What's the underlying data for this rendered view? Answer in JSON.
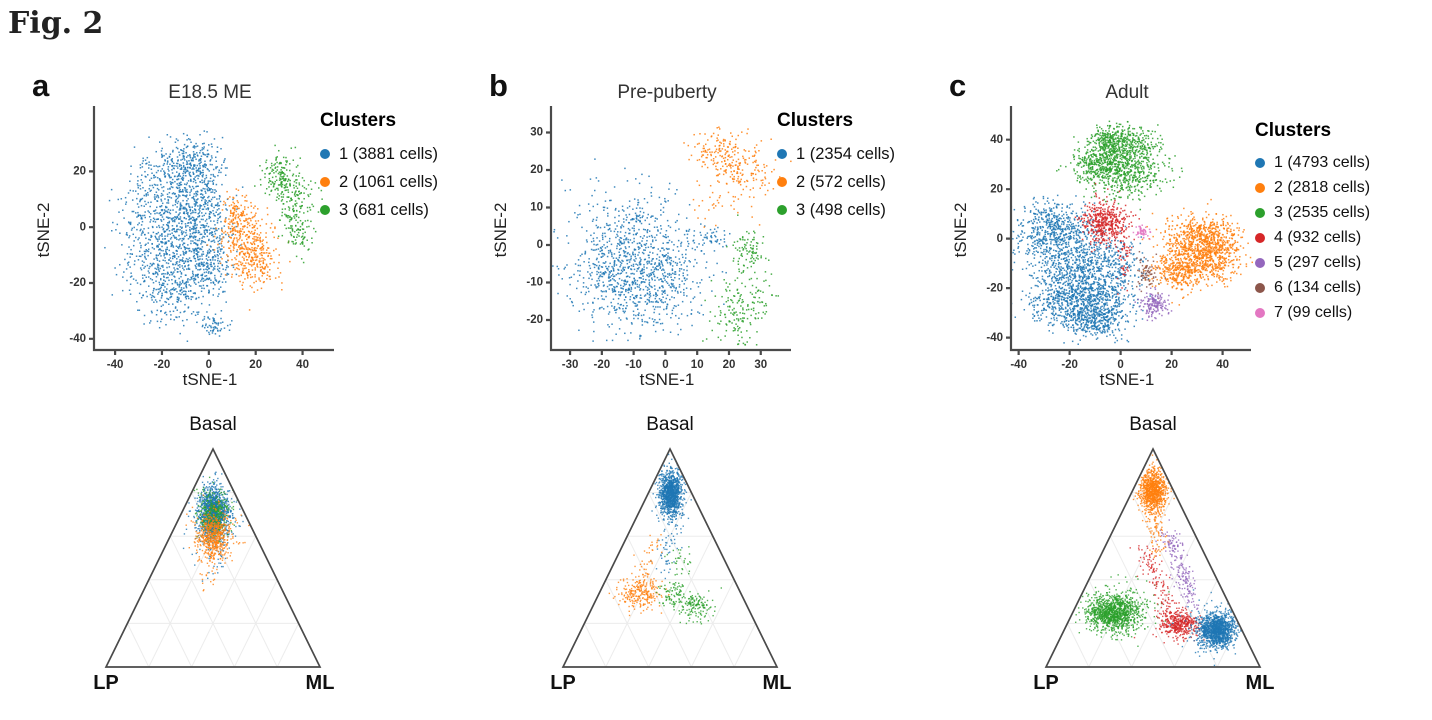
{
  "figure_label": "Fig. 2",
  "palette": {
    "blue": "#1f77b4",
    "orange": "#ff7f0e",
    "green": "#2ca02c",
    "red": "#d62728",
    "purple": "#9467bd",
    "brown": "#8c564b",
    "pink": "#e377c2"
  },
  "chart_data": [
    {
      "letter": "a",
      "title": "E18.5 ME",
      "legend": {
        "title": "Clusters",
        "items": [
          {
            "label": "1 (3881 cells)",
            "cells": 3881,
            "color": "#1f77b4"
          },
          {
            "label": "2 (1061 cells)",
            "cells": 1061,
            "color": "#ff7f0e"
          },
          {
            "label": "3 (681 cells)",
            "cells": 681,
            "color": "#2ca02c"
          }
        ]
      },
      "tsne": {
        "type": "scatter",
        "xlabel": "tSNE-1",
        "ylabel": "tSNE-2",
        "xlim": [
          -49,
          50
        ],
        "ylim": [
          -44,
          42
        ],
        "xticks": [
          -40,
          -20,
          0,
          20,
          40
        ],
        "yticks": [
          -40,
          -20,
          0,
          20
        ],
        "clusters": [
          {
            "name": "cluster-1",
            "color": "#1f77b4",
            "blobs": [
              [
                -15,
                15,
                9,
                8,
                380
              ],
              [
                -7,
                23,
                7,
                5,
                220
              ],
              [
                -22,
                -4,
                8,
                8,
                330
              ],
              [
                -8,
                -2,
                8,
                8,
                300
              ],
              [
                -15,
                -22,
                8,
                6,
                280
              ],
              [
                -4,
                -14,
                7,
                6,
                230
              ],
              [
                0,
                7,
                5,
                8,
                150
              ],
              [
                2,
                -35,
                3,
                2,
                60
              ]
            ]
          },
          {
            "name": "cluster-2",
            "color": "#ff7f0e",
            "blobs": [
              [
                15,
                -4,
                5,
                7,
                260
              ],
              [
                20,
                -12,
                5,
                5,
                190
              ],
              [
                11,
                4,
                3,
                4,
                80
              ]
            ]
          },
          {
            "name": "cluster-3",
            "color": "#2ca02c",
            "blobs": [
              [
                30,
                18,
                4,
                4,
                150
              ],
              [
                36,
                9,
                4,
                5,
                120
              ],
              [
                38,
                -1,
                3,
                4,
                80
              ]
            ]
          }
        ]
      },
      "ternary": {
        "type": "ternary-scatter",
        "axes": {
          "top": "Basal",
          "left": "LP",
          "right": "ML"
        },
        "blobs": [
          {
            "color": "#1f77b4",
            "b": 0.71,
            "lp": 0.145,
            "ml": 0.145,
            "sx": 7,
            "sy": 13,
            "n": 1150
          },
          {
            "color": "#1f77b4",
            "b": 0.68,
            "lp": 0.16,
            "ml": 0.16,
            "sx": 12,
            "sy": 18,
            "n": 150
          },
          {
            "color": "#2ca02c",
            "b": 0.7,
            "lp": 0.15,
            "ml": 0.15,
            "sx": 8,
            "sy": 12,
            "n": 330
          },
          {
            "color": "#ff7f0e",
            "b": 0.6,
            "lp": 0.2,
            "ml": 0.2,
            "sx": 7.5,
            "sy": 12,
            "n": 420
          },
          {
            "color": "#ff7f0e",
            "b": 0.62,
            "lp": 0.19,
            "ml": 0.19,
            "sx": 13,
            "sy": 16,
            "n": 120
          }
        ],
        "trails": [
          {
            "color": "#ff7f0e",
            "from": [
              0.55,
              0.24,
              0.21
            ],
            "to": [
              0.38,
              0.33,
              0.29
            ],
            "jitter": 8,
            "n": 30
          },
          {
            "color": "#1f77b4",
            "from": [
              0.58,
              0.2,
              0.22
            ],
            "to": [
              0.42,
              0.3,
              0.28
            ],
            "jitter": 8,
            "n": 20
          }
        ]
      }
    },
    {
      "letter": "b",
      "title": "Pre-puberty",
      "legend": {
        "title": "Clusters",
        "items": [
          {
            "label": "1 (2354 cells)",
            "cells": 2354,
            "color": "#1f77b4"
          },
          {
            "label": "2 (572 cells)",
            "cells": 572,
            "color": "#ff7f0e"
          },
          {
            "label": "3 (498 cells)",
            "cells": 498,
            "color": "#2ca02c"
          }
        ]
      },
      "tsne": {
        "type": "scatter",
        "xlabel": "tSNE-1",
        "ylabel": "tSNE-2",
        "xlim": [
          -36,
          37
        ],
        "ylim": [
          -28,
          36
        ],
        "xticks": [
          -30,
          -20,
          -10,
          0,
          10,
          20,
          30
        ],
        "yticks": [
          -20,
          -10,
          0,
          10,
          20,
          30
        ],
        "clusters": [
          {
            "name": "cluster-1",
            "color": "#1f77b4",
            "blobs": [
              [
                -12,
                3,
                8,
                7,
                300
              ],
              [
                -8,
                -12,
                9,
                7,
                330
              ],
              [
                -17,
                -7,
                7,
                6,
                250
              ],
              [
                -1,
                -6,
                7,
                7,
                260
              ],
              [
                14,
                2,
                2.5,
                1.5,
                40
              ]
            ]
          },
          {
            "name": "cluster-2",
            "color": "#ff7f0e",
            "blobs": [
              [
                16,
                25,
                4,
                3,
                120
              ],
              [
                23,
                21,
                5,
                4,
                130
              ],
              [
                28,
                17,
                3,
                4,
                30
              ],
              [
                15,
                11,
                3,
                3,
                20
              ]
            ]
          },
          {
            "name": "cluster-3",
            "color": "#2ca02c",
            "blobs": [
              [
                26,
                -1,
                2.5,
                3,
                90
              ],
              [
                23,
                -18,
                4,
                4,
                130
              ],
              [
                29,
                -13,
                3,
                3,
                40
              ]
            ]
          }
        ]
      },
      "ternary": {
        "type": "ternary-scatter",
        "axes": {
          "top": "Basal",
          "left": "LP",
          "right": "ML"
        },
        "blobs": [
          {
            "color": "#1f77b4",
            "b": 0.8,
            "lp": 0.1,
            "ml": 0.1,
            "sx": 5.5,
            "sy": 11,
            "n": 1050
          },
          {
            "color": "#1f77b4",
            "b": 0.78,
            "lp": 0.11,
            "ml": 0.11,
            "sx": 9,
            "sy": 14,
            "n": 60
          },
          {
            "color": "#ff7f0e",
            "b": 0.34,
            "lp": 0.47,
            "ml": 0.19,
            "sx": 11,
            "sy": 8,
            "n": 250
          },
          {
            "color": "#2ca02c",
            "b": 0.28,
            "lp": 0.245,
            "ml": 0.475,
            "sx": 9,
            "sy": 7,
            "n": 140
          },
          {
            "color": "#2ca02c",
            "b": 0.33,
            "lp": 0.33,
            "ml": 0.34,
            "sx": 8,
            "sy": 6,
            "n": 70
          }
        ],
        "trails": [
          {
            "color": "#1f77b4",
            "from": [
              0.7,
              0.15,
              0.15
            ],
            "to": [
              0.45,
              0.3,
              0.25
            ],
            "jitter": 6,
            "n": 60
          },
          {
            "color": "#ff7f0e",
            "from": [
              0.62,
              0.25,
              0.13
            ],
            "to": [
              0.42,
              0.42,
              0.16
            ],
            "jitter": 6,
            "n": 40
          },
          {
            "color": "#2ca02c",
            "from": [
              0.55,
              0.17,
              0.28
            ],
            "to": [
              0.35,
              0.28,
              0.37
            ],
            "jitter": 7,
            "n": 45
          }
        ]
      }
    },
    {
      "letter": "c",
      "title": "Adult",
      "legend": {
        "title": "Clusters",
        "items": [
          {
            "label": "1 (4793 cells)",
            "cells": 4793,
            "color": "#1f77b4"
          },
          {
            "label": "2 (2818 cells)",
            "cells": 2818,
            "color": "#ff7f0e"
          },
          {
            "label": "3 (2535 cells)",
            "cells": 2535,
            "color": "#2ca02c"
          },
          {
            "label": "4 (932 cells)",
            "cells": 932,
            "color": "#d62728"
          },
          {
            "label": "5 (297 cells)",
            "cells": 297,
            "color": "#9467bd"
          },
          {
            "label": "6 (134 cells)",
            "cells": 134,
            "color": "#8c564b"
          },
          {
            "label": "7 (99 cells)",
            "cells": 99,
            "color": "#e377c2"
          }
        ]
      },
      "tsne": {
        "type": "scatter",
        "xlabel": "tSNE-1",
        "ylabel": "tSNE-2",
        "xlim": [
          -43,
          48
        ],
        "ylim": [
          -45,
          52
        ],
        "xticks": [
          -40,
          -20,
          0,
          20,
          40
        ],
        "yticks": [
          -40,
          -20,
          0,
          20,
          40
        ],
        "clusters": [
          {
            "name": "cluster-1",
            "color": "#1f77b4",
            "blobs": [
              [
                -25,
                0,
                8,
                6,
                450
              ],
              [
                -15,
                -12,
                9,
                8,
                600
              ],
              [
                -22,
                -25,
                7,
                6,
                420
              ],
              [
                -8,
                -26,
                7,
                6,
                430
              ],
              [
                -10,
                -34,
                5,
                3,
                200
              ],
              [
                -28,
                8,
                6,
                4,
                180
              ],
              [
                -3,
                -8,
                5,
                5,
                120
              ]
            ]
          },
          {
            "name": "cluster-2",
            "color": "#ff7f0e",
            "blobs": [
              [
                28,
                -4,
                7,
                6,
                600
              ],
              [
                38,
                -5,
                5,
                6,
                380
              ],
              [
                22,
                -13,
                5,
                4,
                250
              ],
              [
                31,
                4,
                6,
                3,
                170
              ]
            ]
          },
          {
            "name": "cluster-3",
            "color": "#2ca02c",
            "blobs": [
              [
                -7,
                31,
                6,
                5,
                420
              ],
              [
                3,
                27,
                7,
                5,
                400
              ],
              [
                4,
                38,
                6,
                4,
                250
              ],
              [
                -4,
                40,
                4,
                3,
                200
              ]
            ]
          },
          {
            "name": "cluster-4",
            "color": "#d62728",
            "blobs": [
              [
                -6,
                7,
                4.5,
                4.5,
                420
              ],
              [
                1,
                -8,
                1.5,
                5,
                50
              ]
            ]
          },
          {
            "name": "cluster-5",
            "color": "#9467bd",
            "blobs": [
              [
                13,
                -26,
                2.5,
                2.5,
                150
              ]
            ]
          },
          {
            "name": "cluster-6",
            "color": "#8c564b",
            "blobs": [
              [
                10,
                -13,
                2.5,
                4,
                70
              ]
            ]
          },
          {
            "name": "cluster-7",
            "color": "#e377c2",
            "blobs": [
              [
                8.5,
                3.5,
                1.3,
                1.3,
                50
              ]
            ]
          }
        ]
      },
      "ternary": {
        "type": "ternary-scatter",
        "axes": {
          "top": "Basal",
          "left": "LP",
          "right": "ML"
        },
        "blobs": [
          {
            "color": "#ff7f0e",
            "b": 0.81,
            "lp": 0.1,
            "ml": 0.09,
            "sx": 6.5,
            "sy": 11,
            "n": 950
          },
          {
            "color": "#2ca02c",
            "b": 0.25,
            "lp": 0.56,
            "ml": 0.19,
            "sx": 13,
            "sy": 9,
            "n": 1050
          },
          {
            "color": "#2ca02c",
            "b": 0.28,
            "lp": 0.52,
            "ml": 0.2,
            "sx": 20,
            "sy": 14,
            "n": 150
          },
          {
            "color": "#d62728",
            "b": 0.2,
            "lp": 0.28,
            "ml": 0.52,
            "sx": 10,
            "sy": 7,
            "n": 430
          },
          {
            "color": "#1f77b4",
            "b": 0.17,
            "lp": 0.12,
            "ml": 0.71,
            "sx": 9,
            "sy": 8,
            "n": 1200
          },
          {
            "color": "#1f77b4",
            "b": 0.19,
            "lp": 0.14,
            "ml": 0.67,
            "sx": 15,
            "sy": 12,
            "n": 120
          }
        ],
        "trails": [
          {
            "color": "#ff7f0e",
            "from": [
              0.7,
              0.14,
              0.16
            ],
            "to": [
              0.52,
              0.22,
              0.26
            ],
            "jitter": 5,
            "n": 70
          },
          {
            "color": "#d62728",
            "from": [
              0.55,
              0.27,
              0.18
            ],
            "to": [
              0.25,
              0.3,
              0.45
            ],
            "jitter": 5,
            "n": 130
          },
          {
            "color": "#9467bd",
            "from": [
              0.63,
              0.12,
              0.25
            ],
            "to": [
              0.3,
              0.17,
              0.53
            ],
            "jitter": 5,
            "n": 200
          }
        ]
      }
    }
  ]
}
